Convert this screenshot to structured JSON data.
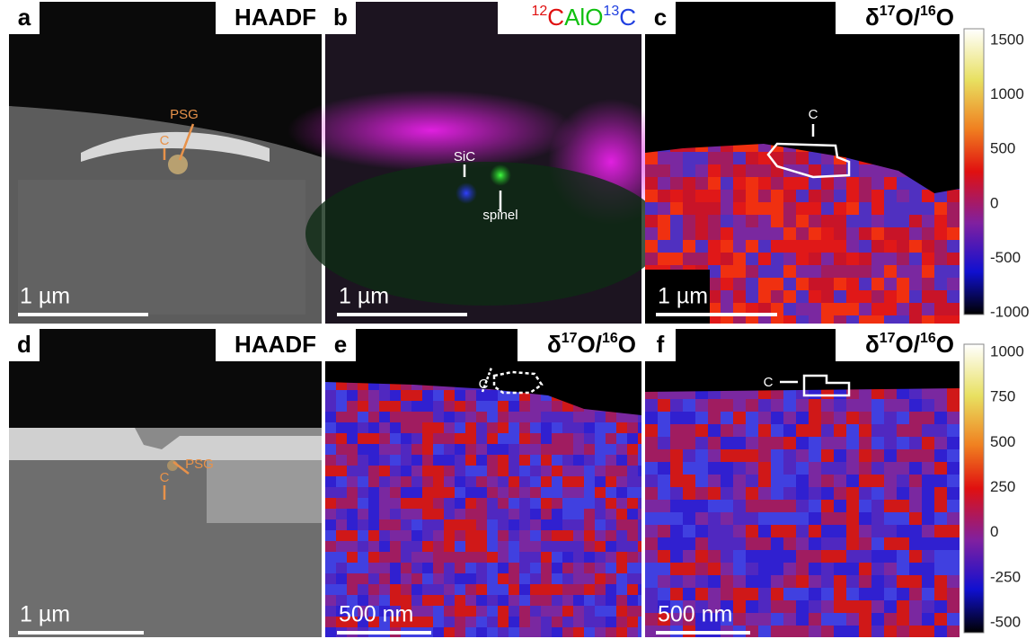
{
  "panels": [
    {
      "letter": "a",
      "label": "HAADF",
      "annotations": [
        "C",
        "PSG"
      ],
      "scale_bar": "1 µm"
    },
    {
      "letter": "b",
      "label_parts": [
        "12",
        "C",
        "AlO",
        "13",
        "C"
      ],
      "annotations": [
        "SiC",
        "spinel"
      ],
      "scale_bar": "1 µm"
    },
    {
      "letter": "c",
      "label_parts": [
        "δ",
        "17",
        "O/",
        "16",
        "O"
      ],
      "annotations": [
        "C"
      ],
      "scale_bar": "1 µm"
    },
    {
      "letter": "d",
      "label": "HAADF",
      "annotations": [
        "C",
        "PSG"
      ],
      "scale_bar": "1 µm"
    },
    {
      "letter": "e",
      "label_parts": [
        "δ",
        "17",
        "O/",
        "16",
        "O"
      ],
      "annotations": [
        "C"
      ],
      "scale_bar": "500 nm"
    },
    {
      "letter": "f",
      "label_parts": [
        "δ",
        "17",
        "O/",
        "16",
        "O"
      ],
      "annotations": [
        "C"
      ],
      "scale_bar": "500 nm"
    }
  ],
  "colorbars": [
    {
      "ticks": [
        "1500",
        "1000",
        "500",
        "0",
        "-500",
        "-1000"
      ]
    },
    {
      "ticks": [
        "1000",
        "750",
        "500",
        "250",
        "0",
        "-250",
        "-500"
      ]
    }
  ]
}
